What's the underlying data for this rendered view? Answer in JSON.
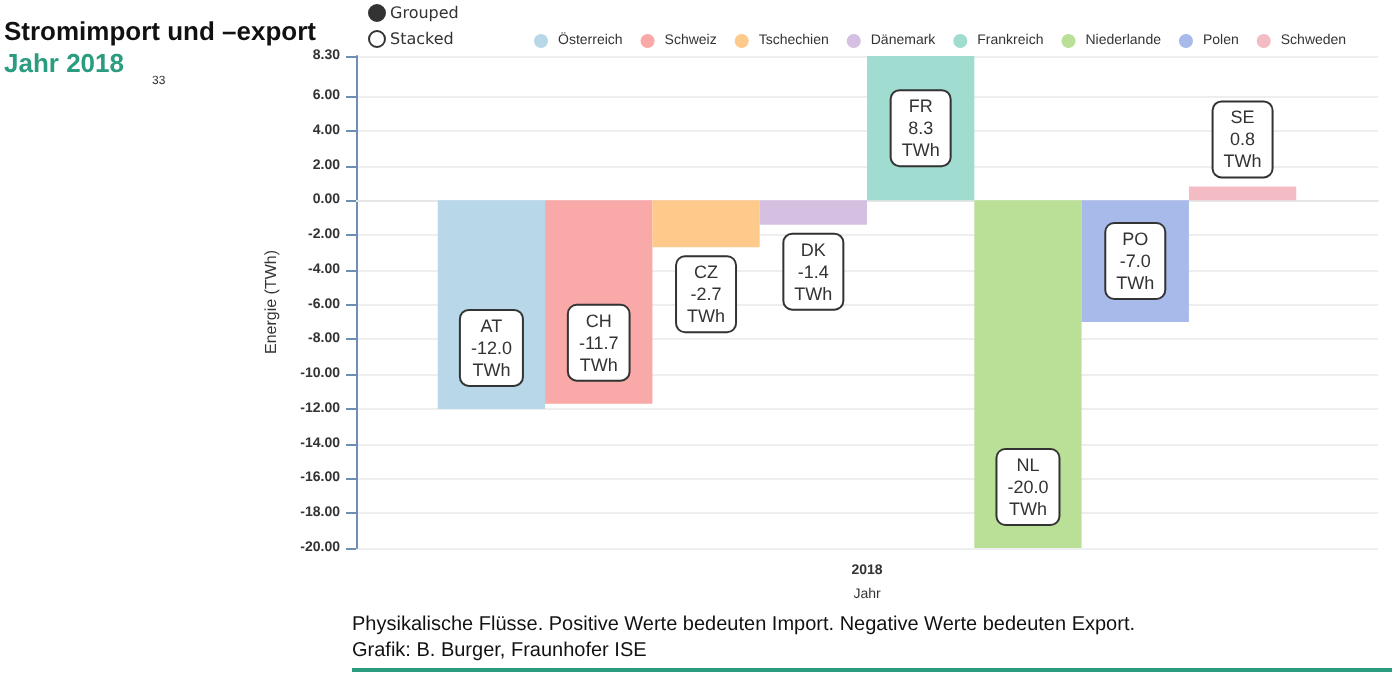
{
  "chart_data": {
    "type": "bar",
    "title": "Stromimport und –export",
    "subtitle": "Jahr 2018",
    "xlabel": "Jahr",
    "ylabel": "Energie (TWh)",
    "categories": [
      "2018"
    ],
    "series": [
      {
        "name": "Österreich",
        "color": "#b8d8ea",
        "values": [
          -12.0
        ],
        "value_labels": [
          "AT\n-12.0\nTWh"
        ]
      },
      {
        "name": "Schweiz",
        "color": "#faa9a9",
        "values": [
          -11.7
        ],
        "value_labels": [
          "CH\n-11.7\nTWh"
        ]
      },
      {
        "name": "Tschechien",
        "color": "#fdca8c",
        "values": [
          -2.7
        ],
        "value_labels": [
          "CZ\n-2.7\nTWh"
        ]
      },
      {
        "name": "Dänemark",
        "color": "#d6c0e2",
        "values": [
          -1.4
        ],
        "value_labels": [
          "DK\n-1.4\nTWh"
        ]
      },
      {
        "name": "Frankreich",
        "color": "#a0dccf",
        "values": [
          8.3
        ],
        "value_labels": [
          "FR\n8.3\nTWh"
        ]
      },
      {
        "name": "Niederlande",
        "color": "#b9e096",
        "values": [
          -20.0
        ],
        "value_labels": [
          "NL\n-20.0\nTWh"
        ]
      },
      {
        "name": "Polen",
        "color": "#a8baea",
        "values": [
          -7.0
        ],
        "value_labels": [
          "PO\n-7.0\nTWh"
        ]
      },
      {
        "name": "Schweden",
        "color": "#f3bcc4",
        "values": [
          0.8
        ],
        "value_labels": [
          "SE\n0.8\nTWh"
        ]
      }
    ],
    "ylim": [
      -20,
      8.3
    ],
    "yticks": [
      {
        "value": -20,
        "label": "-20.00"
      },
      {
        "value": -18,
        "label": "-18.00"
      },
      {
        "value": -16,
        "label": "-16.00"
      },
      {
        "value": -14,
        "label": "-14.00"
      },
      {
        "value": -12,
        "label": "-12.00"
      },
      {
        "value": -10,
        "label": "-10.00"
      },
      {
        "value": -8,
        "label": "-8.00"
      },
      {
        "value": -6,
        "label": "-6.00"
      },
      {
        "value": -4,
        "label": "-4.00"
      },
      {
        "value": -2,
        "label": "-2.00"
      },
      {
        "value": 0,
        "label": "0.00"
      },
      {
        "value": 2,
        "label": "2.00"
      },
      {
        "value": 4,
        "label": "4.00"
      },
      {
        "value": 6,
        "label": "6.00"
      },
      {
        "value": 8.3,
        "label": "8.30"
      }
    ],
    "grid": "y",
    "legend": "top",
    "annotations": [
      "Grouped",
      "Stacked",
      "33",
      "Physikalische Flüsse. Positive Werte bedeuten Import. Negative Werte bedeuten Export.",
      "Grafik: B. Burger, Fraunhofer ISE"
    ]
  }
}
